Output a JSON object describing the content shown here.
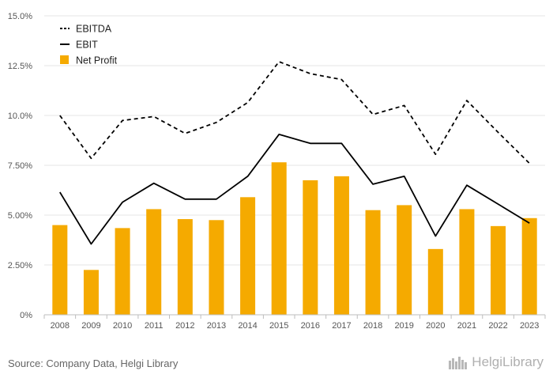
{
  "chart_data": {
    "type": "bar",
    "categories": [
      "2008",
      "2009",
      "2010",
      "2011",
      "2012",
      "2013",
      "2014",
      "2015",
      "2016",
      "2017",
      "2018",
      "2019",
      "2020",
      "2021",
      "2022",
      "2023"
    ],
    "y_tick_labels": [
      "0%",
      "2.50%",
      "5.00%",
      "7.50%",
      "10.0%",
      "12.5%",
      "15.0%"
    ],
    "ylim": [
      0,
      15
    ],
    "grid": true,
    "legend_position": "top-left",
    "series": [
      {
        "name": "EBITDA",
        "kind": "line",
        "style": "dashed",
        "color": "#000000",
        "values": [
          10.0,
          7.85,
          9.75,
          9.95,
          9.1,
          9.65,
          10.65,
          12.7,
          12.1,
          11.8,
          10.05,
          10.5,
          8.05,
          10.75,
          9.15,
          7.6
        ]
      },
      {
        "name": "EBIT",
        "kind": "line",
        "style": "solid",
        "color": "#000000",
        "values": [
          6.15,
          3.55,
          5.65,
          6.6,
          5.8,
          5.8,
          6.95,
          9.05,
          8.6,
          8.6,
          6.55,
          6.95,
          3.95,
          6.5,
          5.55,
          4.6
        ]
      },
      {
        "name": "Net Profit",
        "kind": "bar",
        "color": "#f5aa00",
        "values": [
          4.5,
          2.25,
          4.35,
          5.3,
          4.8,
          4.75,
          5.9,
          7.65,
          6.75,
          6.95,
          5.25,
          5.5,
          3.3,
          5.3,
          4.45,
          4.85
        ]
      }
    ]
  },
  "footer": {
    "source": "Source: Company Data, Helgi Library",
    "brand": "HelgiLibrary"
  }
}
